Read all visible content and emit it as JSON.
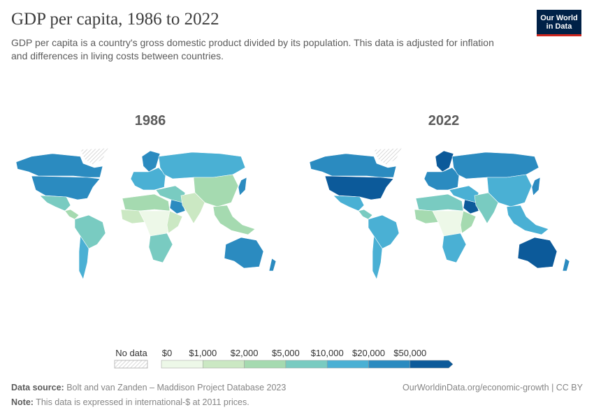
{
  "header": {
    "title": "GDP per capita, 1986 to 2022",
    "subtitle": "GDP per capita is a country's gross domestic product divided by its population. This data is adjusted for inflation and differences in living costs between countries.",
    "logo": "Our World in Data"
  },
  "maps": [
    {
      "year": "1986",
      "regions": {
        "canada": "$20,000–$50,000",
        "usa": "$20,000–$50,000",
        "mexico": "$5,000–$10,000",
        "central_america": "$2,000–$5,000",
        "greenland": "No data",
        "south_america": "$5,000–$10,000",
        "argentina": "$10,000–$20,000",
        "europe": "$10,000–$20,000",
        "scandinavia": "$20,000–$50,000",
        "russia": "$10,000–$20,000",
        "middle_east": "$5,000–$10,000",
        "gulf": "$20,000–$50,000",
        "north_africa": "$2,000–$5,000",
        "west_africa": "$1,000–$2,000",
        "central_africa": "$0–$1,000",
        "east_africa": "$1,000–$2,000",
        "southern_africa": "$5,000–$10,000",
        "china": "$2,000–$5,000",
        "india": "$1,000–$2,000",
        "southeast_asia": "$2,000–$5,000",
        "japan": "$20,000–$50,000",
        "australia": "$20,000–$50,000",
        "new_zealand": "$20,000–$50,000"
      }
    },
    {
      "year": "2022",
      "regions": {
        "canada": "$20,000–$50,000",
        "usa": "$50,000+",
        "mexico": "$10,000–$20,000",
        "central_america": "$5,000–$10,000",
        "greenland": "No data",
        "south_america": "$10,000–$20,000",
        "argentina": "$10,000–$20,000",
        "europe": "$20,000–$50,000",
        "scandinavia": "$50,000+",
        "russia": "$20,000–$50,000",
        "middle_east": "$10,000–$20,000",
        "gulf": "$50,000+",
        "north_africa": "$5,000–$10,000",
        "west_africa": "$2,000–$5,000",
        "central_africa": "$0–$1,000",
        "east_africa": "$2,000–$5,000",
        "southern_africa": "$10,000–$20,000",
        "china": "$10,000–$20,000",
        "india": "$5,000–$10,000",
        "southeast_asia": "$10,000–$20,000",
        "japan": "$20,000–$50,000",
        "australia": "$50,000+",
        "new_zealand": "$20,000–$50,000"
      }
    }
  ],
  "legend": {
    "no_data": "No data",
    "ticks": [
      "$0",
      "$1,000",
      "$2,000",
      "$5,000",
      "$10,000",
      "$20,000",
      "$50,000"
    ],
    "brackets": [
      "$0–$1,000",
      "$1,000–$2,000",
      "$2,000–$5,000",
      "$5,000–$10,000",
      "$10,000–$20,000",
      "$20,000–$50,000",
      "$50,000+"
    ],
    "colors": [
      "#edf8e8",
      "#cbe8c3",
      "#a5dab0",
      "#79cbc1",
      "#4ab0d4",
      "#2b8bc0",
      "#0c5a9a"
    ]
  },
  "footer": {
    "source_label": "Data source:",
    "source": "Bolt and van Zanden – Maddison Project Database 2023",
    "url": "OurWorldinData.org/economic-growth | CC BY",
    "note_label": "Note:",
    "note": "This data is expressed in international-$ at 2011 prices."
  }
}
